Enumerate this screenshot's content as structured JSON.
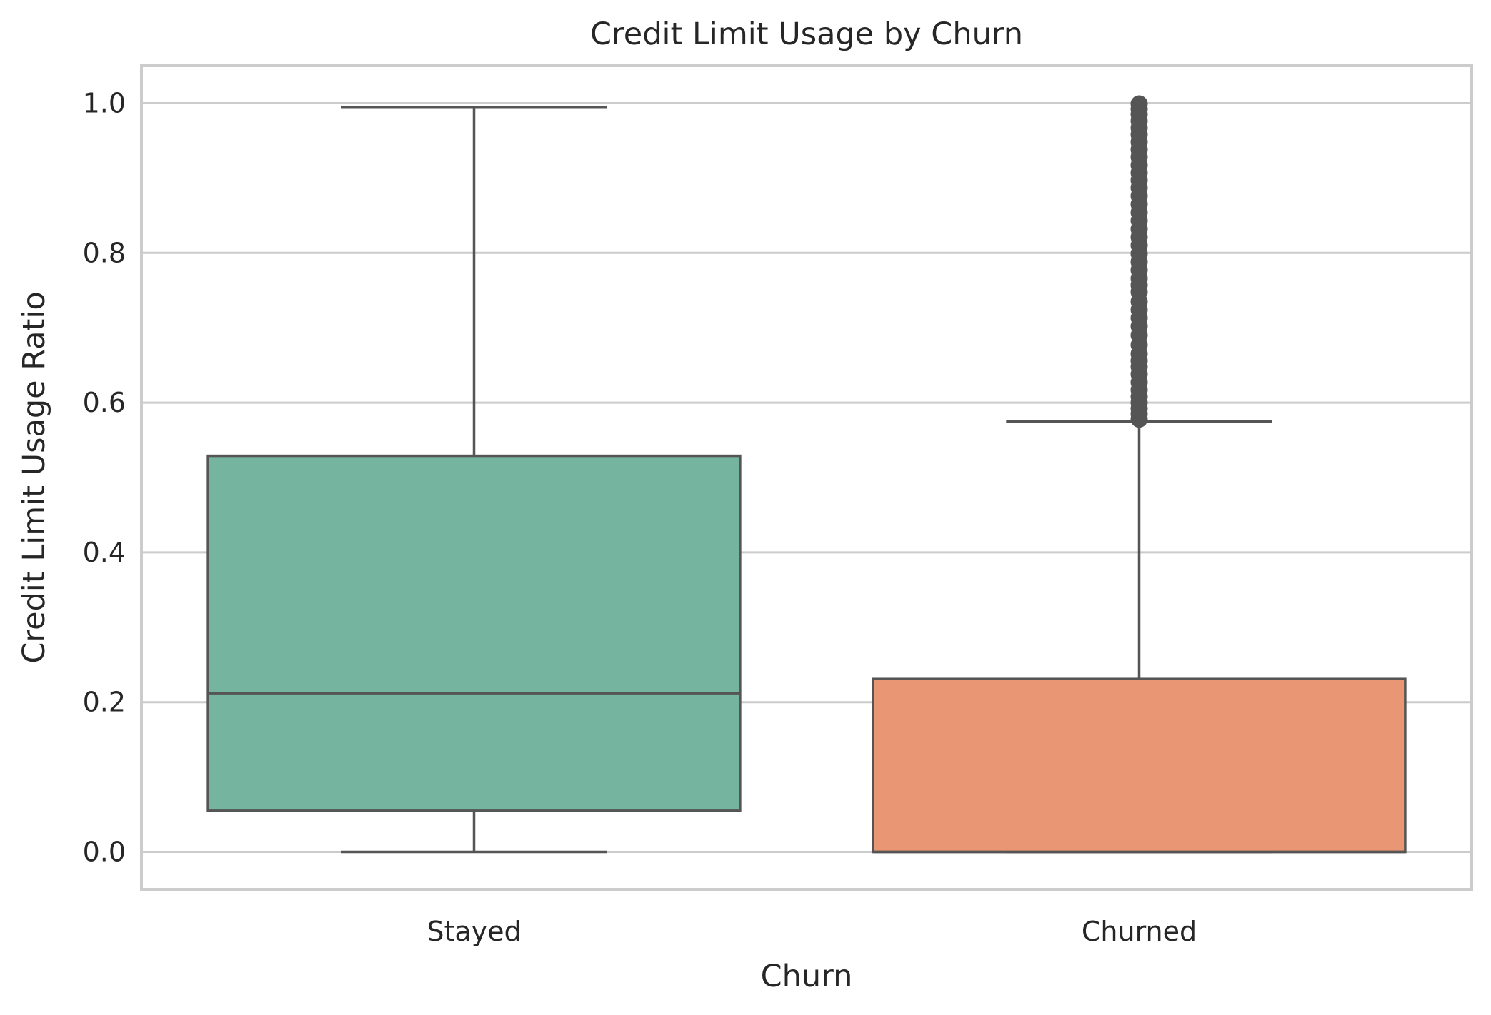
{
  "chart_data": {
    "type": "box",
    "title": "Credit Limit Usage by Churn",
    "xlabel": "Churn",
    "ylabel": "Credit Limit Usage Ratio",
    "ylim": [
      -0.05,
      1.05
    ],
    "yticks": [
      0.0,
      0.2,
      0.4,
      0.6,
      0.8,
      1.0
    ],
    "ytick_labels": [
      "0.0",
      "0.2",
      "0.4",
      "0.6",
      "0.8",
      "1.0"
    ],
    "grid": "horizontal",
    "categories": [
      "Stayed",
      "Churned"
    ],
    "boxes": [
      {
        "category": "Stayed",
        "whisker_low": 0.0,
        "q1": 0.055,
        "median": 0.212,
        "q3": 0.529,
        "whisker_high": 0.994,
        "color": "#75b5a0",
        "outliers": []
      },
      {
        "category": "Churned",
        "whisker_low": 0.0,
        "q1": 0.0,
        "median": 0.0,
        "q3": 0.231,
        "whisker_high": 0.575,
        "color": "#e89673",
        "outliers": [
          0.578,
          0.585,
          0.592,
          0.6,
          0.608,
          0.617,
          0.627,
          0.638,
          0.648,
          0.656,
          0.665,
          0.677,
          0.69,
          0.702,
          0.713,
          0.724,
          0.735,
          0.748,
          0.757,
          0.766,
          0.777,
          0.788,
          0.799,
          0.81,
          0.821,
          0.832,
          0.843,
          0.854,
          0.865,
          0.876,
          0.887,
          0.897,
          0.907,
          0.917,
          0.928,
          0.938,
          0.948,
          0.958,
          0.967,
          0.976,
          0.985,
          0.992,
          0.999
        ]
      }
    ],
    "line_color": "#555555",
    "grid_color": "#cccccc"
  }
}
